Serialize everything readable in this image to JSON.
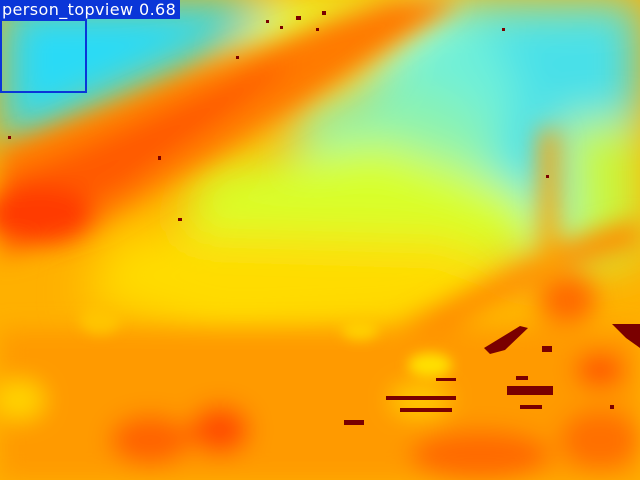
{
  "image": {
    "kind": "thermal-heatmap-topview",
    "palette": [
      "#20d8ff",
      "#7cf6ff",
      "#d8ff2a",
      "#ffe600",
      "#ffb000",
      "#ff7a00",
      "#ff3a00",
      "#7a0000"
    ]
  },
  "detection": {
    "class": "person_topview",
    "score": "0.68",
    "label": "person_topview 0.68",
    "box_color": "#0a36d8"
  }
}
